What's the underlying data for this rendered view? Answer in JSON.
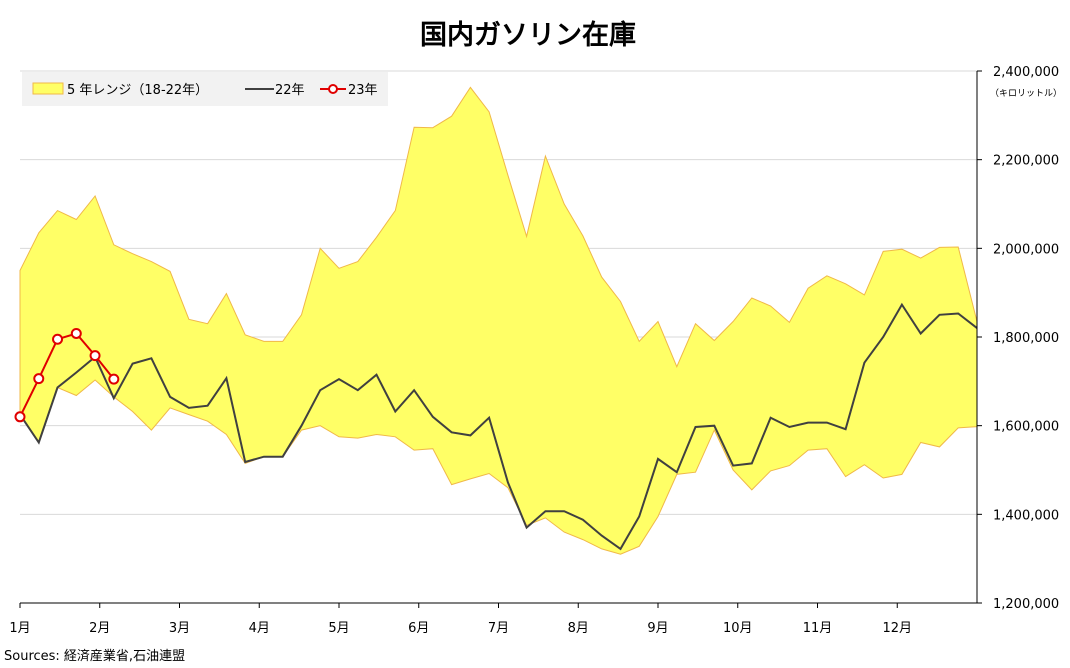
{
  "chart_data": {
    "type": "line",
    "title": "国内ガソリン在庫",
    "unit_label": "（キロリットル）",
    "source": "Sources: 経済産業省,石油連盟",
    "ylim": [
      1200000,
      2400000
    ],
    "y_ticks": [
      "1,200,000",
      "1,400,000",
      "1,600,000",
      "1,800,000",
      "2,000,000",
      "2,200,000",
      "2,400,000"
    ],
    "y_tick_values": [
      1200000,
      1400000,
      1600000,
      1800000,
      2000000,
      2200000,
      2400000
    ],
    "months": [
      "1月",
      "2月",
      "3月",
      "4月",
      "5月",
      "6月",
      "7月",
      "8月",
      "9月",
      "10月",
      "11月",
      "12月"
    ],
    "week_count": 52,
    "legend": [
      "5 年レンジ（18-22年）",
      "22年",
      "23年"
    ],
    "colors": {
      "band_fill": "#ffff66",
      "band_edge": "#f0b848",
      "line22": "#404040",
      "line23": "#e00000",
      "grid": "#d9d9d9"
    },
    "series": [
      {
        "name": "5 年レンジ（18-22年）",
        "kind": "band",
        "upper": [
          1950000,
          2035000,
          2085000,
          2065000,
          2118000,
          2008000,
          1988000,
          1970000,
          1948000,
          1840000,
          1830000,
          1898000,
          1805000,
          1790000,
          1790000,
          1850000,
          2000000,
          1955000,
          1970000,
          2025000,
          2085000,
          2273000,
          2272000,
          2298000,
          2363000,
          2308000,
          2165000,
          2027000,
          2208000,
          2100000,
          2028000,
          1935000,
          1880000,
          1790000,
          1835000,
          1733000,
          1830000,
          1792000,
          1835000,
          1888000,
          1870000,
          1833000,
          1910000,
          1938000,
          1920000,
          1895000,
          1993000,
          1998000,
          1978000,
          2002000,
          2003000,
          1835000
        ],
        "lower": [
          1625000,
          1562000,
          1686000,
          1668000,
          1703000,
          1665000,
          1632000,
          1590000,
          1640000,
          1625000,
          1610000,
          1580000,
          1515000,
          1530000,
          1530000,
          1590000,
          1600000,
          1575000,
          1572000,
          1580000,
          1575000,
          1545000,
          1548000,
          1467000,
          1480000,
          1492000,
          1460000,
          1375000,
          1392000,
          1360000,
          1343000,
          1322000,
          1310000,
          1328000,
          1395000,
          1490000,
          1495000,
          1590000,
          1500000,
          1455000,
          1498000,
          1510000,
          1545000,
          1548000,
          1485000,
          1512000,
          1482000,
          1490000,
          1562000,
          1552000,
          1595000,
          1598000
        ]
      },
      {
        "name": "22年",
        "kind": "line",
        "values": [
          1625000,
          1562000,
          1686000,
          1720000,
          1755000,
          1662000,
          1740000,
          1752000,
          1665000,
          1640000,
          1645000,
          1707000,
          1518000,
          1530000,
          1530000,
          1600000,
          1680000,
          1705000,
          1680000,
          1715000,
          1632000,
          1680000,
          1620000,
          1585000,
          1578000,
          1618000,
          1472000,
          1370000,
          1407000,
          1407000,
          1388000,
          1352000,
          1322000,
          1395000,
          1525000,
          1495000,
          1597000,
          1600000,
          1510000,
          1515000,
          1618000,
          1597000,
          1607000,
          1607000,
          1592000,
          1742000,
          1800000,
          1873000,
          1808000,
          1850000,
          1853000,
          1820000
        ]
      },
      {
        "name": "23年",
        "kind": "line-marker",
        "values": [
          1620000,
          1706000,
          1795000,
          1808000,
          1758000,
          1705000
        ]
      }
    ]
  }
}
